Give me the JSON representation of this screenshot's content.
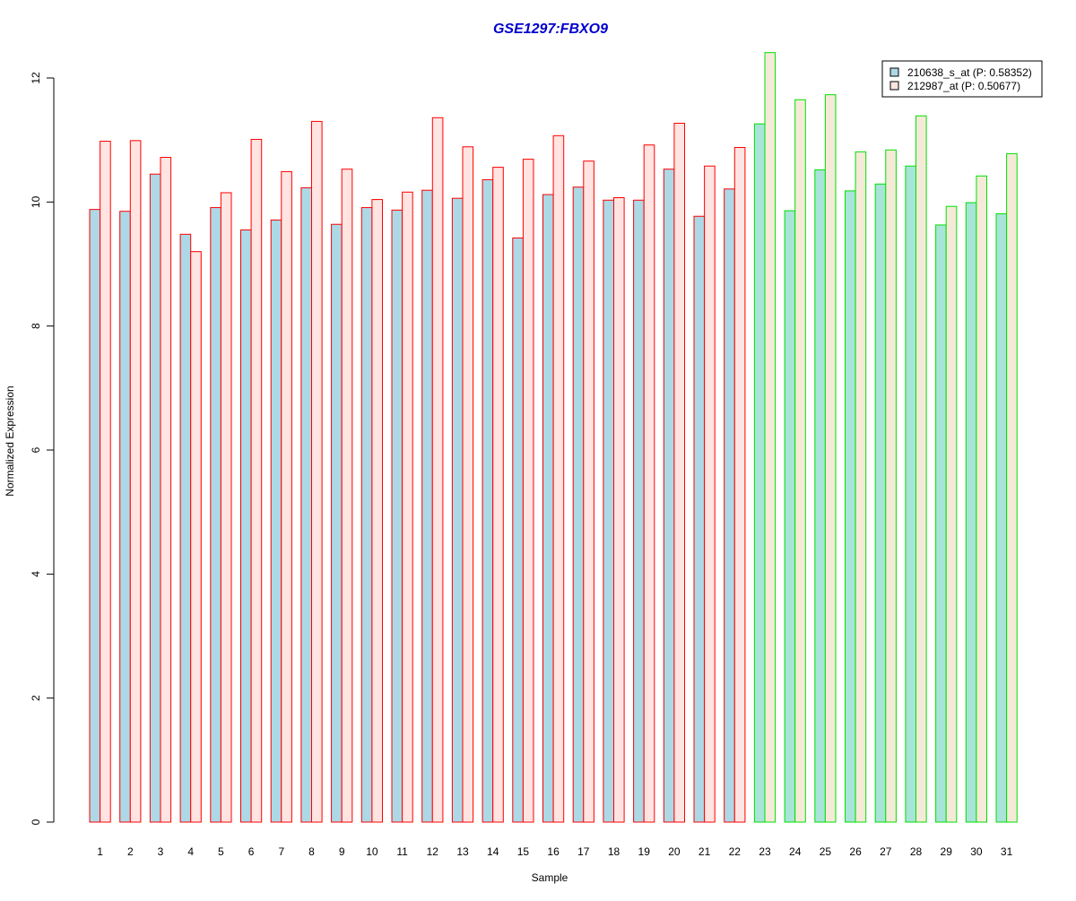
{
  "chart_data": {
    "type": "bar",
    "title": "GSE1297:FBXO9",
    "xlabel": "Sample",
    "ylabel": "Normalized Expression",
    "ylim": [
      0,
      12
    ],
    "yticks": [
      0,
      2,
      4,
      6,
      8,
      10,
      12
    ],
    "categories": [
      "1",
      "2",
      "3",
      "4",
      "5",
      "6",
      "7",
      "8",
      "9",
      "10",
      "11",
      "12",
      "13",
      "14",
      "15",
      "16",
      "17",
      "18",
      "19",
      "20",
      "21",
      "22",
      "23",
      "24",
      "25",
      "26",
      "27",
      "28",
      "29",
      "30",
      "31"
    ],
    "series": [
      {
        "name": "210638_s_at (P: 0.58352)",
        "values": [
          9.88,
          9.85,
          10.45,
          9.48,
          9.91,
          9.55,
          9.71,
          10.23,
          9.64,
          9.91,
          9.87,
          10.19,
          10.06,
          10.36,
          9.42,
          10.12,
          10.24,
          10.03,
          10.03,
          10.53,
          9.77,
          10.21,
          11.26,
          9.86,
          10.52,
          10.18,
          10.29,
          10.58,
          9.63,
          9.99,
          9.81
        ]
      },
      {
        "name": "212987_at (P: 0.50677)",
        "values": [
          10.98,
          10.99,
          10.72,
          9.2,
          10.15,
          11.01,
          10.49,
          11.3,
          10.53,
          10.04,
          10.16,
          11.36,
          10.89,
          10.56,
          10.69,
          11.07,
          10.66,
          10.07,
          10.92,
          11.27,
          10.58,
          10.88,
          12.41,
          11.65,
          11.73,
          10.81,
          10.84,
          11.39,
          9.93,
          10.42,
          10.78
        ]
      }
    ],
    "group_outline": [
      "#ff0000",
      "#ff0000",
      "#ff0000",
      "#ff0000",
      "#ff0000",
      "#ff0000",
      "#ff0000",
      "#ff0000",
      "#ff0000",
      "#ff0000",
      "#ff0000",
      "#ff0000",
      "#ff0000",
      "#ff0000",
      "#ff0000",
      "#ff0000",
      "#ff0000",
      "#ff0000",
      "#ff0000",
      "#ff0000",
      "#ff0000",
      "#ff0000",
      "#00e000",
      "#00e000",
      "#00e000",
      "#00e000",
      "#00e000",
      "#00e000",
      "#00e000",
      "#00e000",
      "#00e000"
    ],
    "colors": {
      "title": "#0000cc",
      "series1_fill_group_a": "#add8e6",
      "series2_fill_group_a": "#ffe4e1",
      "series1_fill_group_b": "#a8e4d8",
      "series2_fill_group_b": "#f5ead8",
      "legend_series1": "#add8e6",
      "legend_series2": "#ffe4e1"
    },
    "legend_position": "top-right",
    "grid": false
  }
}
